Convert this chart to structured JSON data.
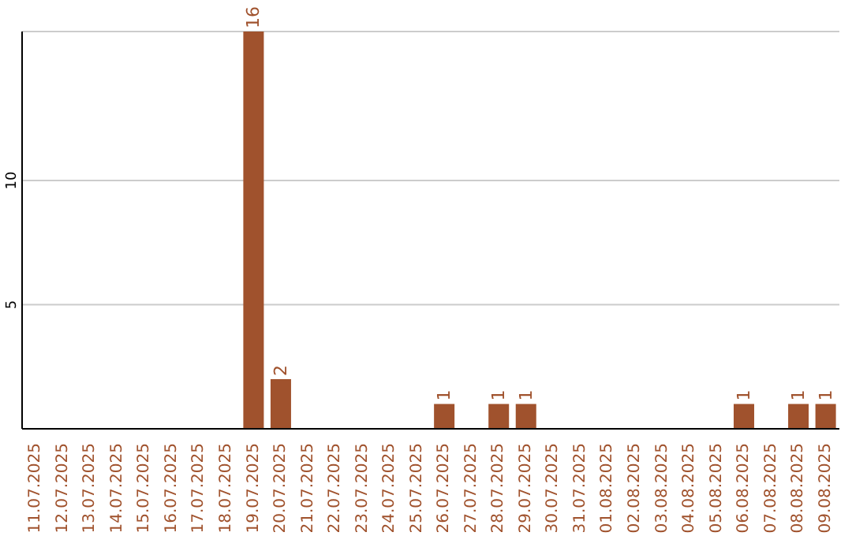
{
  "chart_data": {
    "type": "bar",
    "categories": [
      "11.07.2025",
      "12.07.2025",
      "13.07.2025",
      "14.07.2025",
      "15.07.2025",
      "16.07.2025",
      "17.07.2025",
      "18.07.2025",
      "19.07.2025",
      "20.07.2025",
      "21.07.2025",
      "22.07.2025",
      "23.07.2025",
      "24.07.2025",
      "25.07.2025",
      "26.07.2025",
      "27.07.2025",
      "28.07.2025",
      "29.07.2025",
      "30.07.2025",
      "31.07.2025",
      "01.08.2025",
      "02.08.2025",
      "03.08.2025",
      "04.08.2025",
      "05.08.2025",
      "06.08.2025",
      "07.08.2025",
      "08.08.2025",
      "09.08.2025"
    ],
    "values": [
      0,
      0,
      0,
      0,
      0,
      0,
      0,
      0,
      16,
      2,
      0,
      0,
      0,
      0,
      0,
      1,
      0,
      1,
      1,
      0,
      0,
      0,
      0,
      0,
      0,
      0,
      1,
      0,
      1,
      1
    ],
    "value_labels": [
      null,
      null,
      null,
      null,
      null,
      null,
      null,
      null,
      "16",
      "2",
      null,
      null,
      null,
      null,
      null,
      "1",
      null,
      "1",
      "1",
      null,
      null,
      null,
      null,
      null,
      null,
      null,
      "1",
      null,
      "1",
      "1"
    ],
    "color": "#a0522d",
    "ylim": [
      0,
      16
    ],
    "yticks": [
      5,
      10
    ],
    "grid": "y"
  }
}
